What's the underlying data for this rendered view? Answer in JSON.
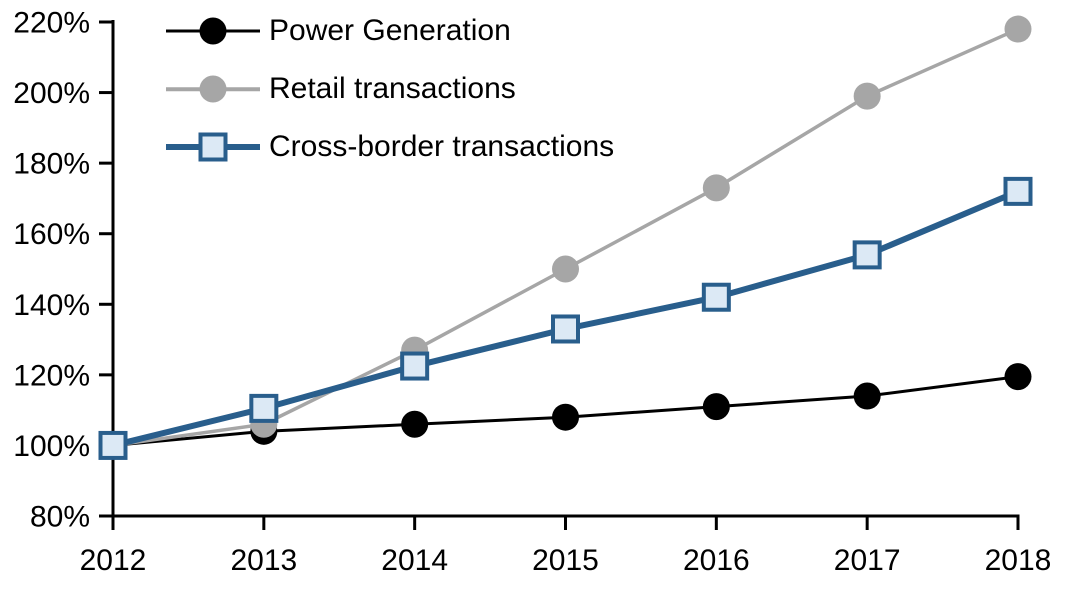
{
  "chart_data": {
    "type": "line",
    "title": "",
    "xlabel": "",
    "ylabel": "",
    "x_categories": [
      "2012",
      "2013",
      "2014",
      "2015",
      "2016",
      "2017",
      "2018"
    ],
    "y_axis": {
      "ticks": [
        80,
        100,
        120,
        140,
        160,
        180,
        200,
        220
      ],
      "tick_labels": [
        "80%",
        "100%",
        "120%",
        "140%",
        "160%",
        "180%",
        "200%",
        "220%"
      ],
      "ylim": [
        80,
        220
      ],
      "unit": "%"
    },
    "grid": false,
    "legend_position": "top-left",
    "axis_color": "#000000",
    "background_color": "#FFFFFF",
    "series": [
      {
        "name": "Power Generation",
        "values": [
          100,
          104,
          106,
          108,
          111,
          114,
          119.5
        ],
        "color": "#000000",
        "marker": "circle",
        "marker_fill": "#000000",
        "line_width": 3
      },
      {
        "name": "Retail transactions",
        "values": [
          100,
          106,
          127,
          150,
          173,
          199,
          218
        ],
        "color": "#A6A6A6",
        "marker": "circle",
        "marker_fill": "#A6A6A6",
        "line_width": 3.5
      },
      {
        "name": "Cross-border transactions",
        "values": [
          100,
          110.5,
          122.5,
          133,
          142,
          154,
          172
        ],
        "color": "#295E8C",
        "marker": "square",
        "marker_fill": "#DCE9F5",
        "line_width": 6
      }
    ]
  }
}
